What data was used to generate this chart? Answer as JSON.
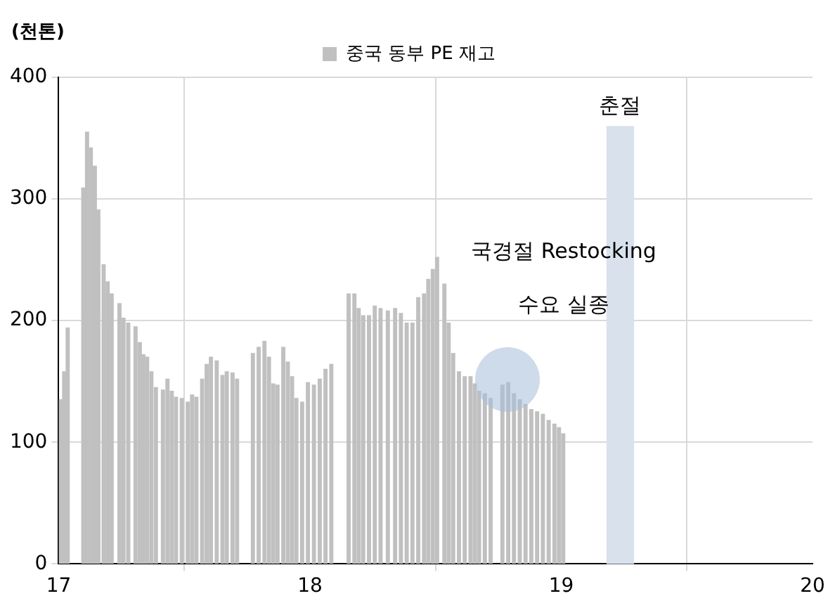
{
  "chart_data": {
    "type": "bar",
    "ylabel": "(천톤)",
    "legend": "top",
    "x": [
      17.008,
      17.022,
      17.036,
      17.098,
      17.113,
      17.128,
      17.144,
      17.158,
      17.179,
      17.195,
      17.211,
      17.242,
      17.258,
      17.277,
      17.306,
      17.323,
      17.337,
      17.352,
      17.369,
      17.387,
      17.415,
      17.433,
      17.45,
      17.467,
      17.49,
      17.514,
      17.531,
      17.548,
      17.571,
      17.589,
      17.606,
      17.629,
      17.652,
      17.669,
      17.692,
      17.71,
      17.773,
      17.796,
      17.819,
      17.837,
      17.854,
      17.871,
      17.894,
      17.912,
      17.929,
      17.946,
      17.969,
      17.992,
      18.016,
      18.039,
      18.062,
      18.085,
      18.154,
      18.177,
      18.194,
      18.212,
      18.235,
      18.258,
      18.281,
      18.31,
      18.339,
      18.362,
      18.385,
      18.408,
      18.431,
      18.454,
      18.471,
      18.489,
      18.506,
      18.535,
      18.552,
      18.57,
      18.593,
      18.616,
      18.639,
      18.656,
      18.673,
      18.696,
      18.719,
      18.766,
      18.789,
      18.812,
      18.835,
      18.858,
      18.881,
      18.904,
      18.927,
      18.95,
      18.973,
      18.991,
      19.008
    ],
    "series": [
      {
        "name": "중국 동부 PE 재고",
        "color": "#c0c0c0",
        "values": [
          135,
          158,
          194,
          309,
          355,
          342,
          327,
          291,
          246,
          232,
          222,
          214,
          202,
          198,
          195,
          182,
          172,
          170,
          158,
          145,
          143,
          152,
          142,
          137,
          136,
          133,
          139,
          137,
          152,
          164,
          170,
          167,
          155,
          158,
          157,
          152,
          173,
          178,
          183,
          170,
          148,
          147,
          178,
          166,
          154,
          136,
          133,
          149,
          147,
          152,
          160,
          164,
          222,
          222,
          210,
          204,
          204,
          212,
          210,
          208,
          210,
          206,
          198,
          198,
          219,
          222,
          234,
          242,
          252,
          230,
          198,
          173,
          158,
          154,
          154,
          148,
          142,
          140,
          136,
          147,
          149,
          140,
          135,
          131,
          127,
          125,
          123,
          118,
          115,
          112,
          107
        ]
      }
    ],
    "xlim": [
      17,
      20
    ],
    "xticks": [
      17,
      18,
      19,
      20
    ],
    "ylim": [
      0,
      400
    ],
    "yticks": [
      0,
      100,
      200,
      300,
      400
    ],
    "grid": true,
    "bands": [
      {
        "axis": "x",
        "from": 19.18,
        "to": 19.29,
        "label": "춘절",
        "color": "#d9e1ec"
      }
    ],
    "annotations": [
      "국경절 Restocking",
      "수요 실종"
    ]
  }
}
